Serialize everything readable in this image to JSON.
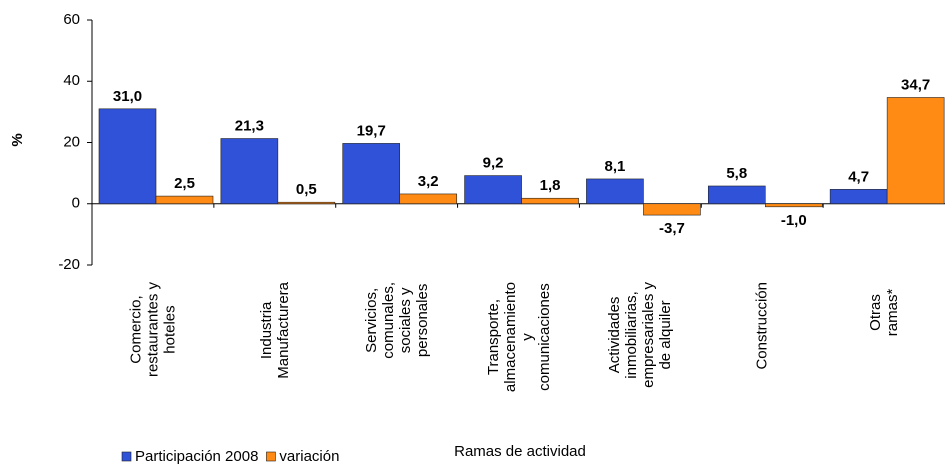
{
  "chart_data": {
    "type": "bar",
    "categories": [
      "Comercio,\nrestaurantes y\nhoteles",
      "Industria\nManufacturera",
      "Servicios,\ncomunales,\nsociales y\npersonales",
      "Transporte,\nalmacenamiento\ny\ncomunicaciones",
      "Actividades\ninmobiliarias,\nempresariales y\nde alquiler",
      "Construcción",
      "Otras ramas*"
    ],
    "series": [
      {
        "name": "Participación 2008",
        "color": "#2f52d9",
        "label_color": "#1c1c78",
        "values": [
          31.0,
          21.3,
          19.7,
          9.2,
          8.1,
          5.8,
          4.7
        ],
        "value_labels": [
          "31,0",
          "21,3",
          "19,7",
          "9,2",
          "8,1",
          "5,8",
          "4,7"
        ]
      },
      {
        "name": "variación",
        "color": "#ff8a14",
        "label_color": "#ff7f27",
        "values": [
          2.5,
          0.5,
          3.2,
          1.8,
          -3.7,
          -1.0,
          34.7
        ],
        "value_labels": [
          "2,5",
          "0,5",
          "3,2",
          "1,8",
          "-3,7",
          "-1,0",
          "34,7"
        ]
      }
    ],
    "xlabel": "Ramas de actividad",
    "ylabel": "%",
    "ylim": [
      -20,
      60
    ],
    "yticks": [
      -20,
      0,
      20,
      40,
      60
    ],
    "legend": "bottom-left"
  }
}
